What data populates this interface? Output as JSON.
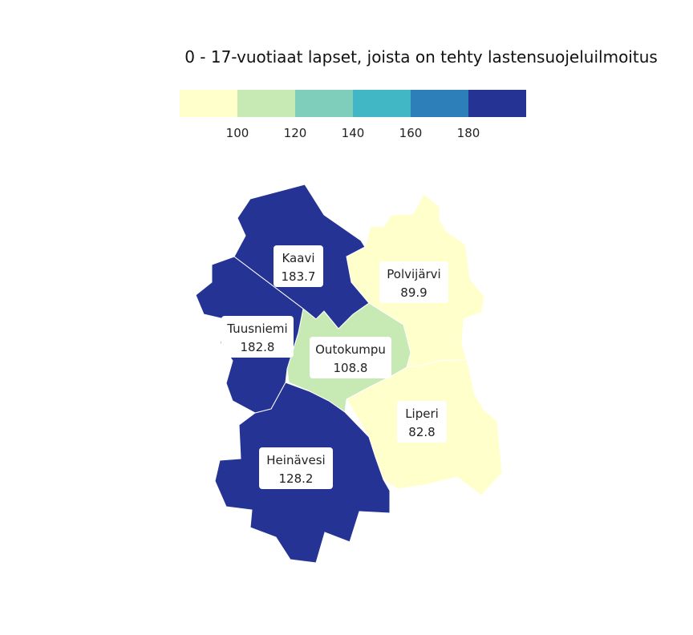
{
  "title": "0 - 17-vuotiaat lapset, joista on tehty lastensuojeluilmoitus",
  "legend": {
    "colors": [
      "#ffffcc",
      "#c7e9b4",
      "#7fcdbb",
      "#41b6c4",
      "#2c7fb8",
      "#253494"
    ],
    "ticks": [
      "100",
      "120",
      "140",
      "160",
      "180"
    ]
  },
  "chart_data": {
    "type": "choropleth",
    "breaks": [
      100,
      120,
      140,
      160,
      180
    ],
    "regions": [
      {
        "name": "Kaavi",
        "value": "183.7",
        "color": "#253494"
      },
      {
        "name": "Polvijärvi",
        "value": "89.9",
        "color": "#ffffcc"
      },
      {
        "name": "Tuusniemi",
        "value": "182.8",
        "color": "#253494"
      },
      {
        "name": "Outokumpu",
        "value": "108.8",
        "color": "#c7e9b4"
      },
      {
        "name": "Liperi",
        "value": "82.8",
        "color": "#ffffcc"
      },
      {
        "name": "Heinävesi",
        "value": "128.2",
        "color": "#7fcdbb"
      }
    ]
  }
}
